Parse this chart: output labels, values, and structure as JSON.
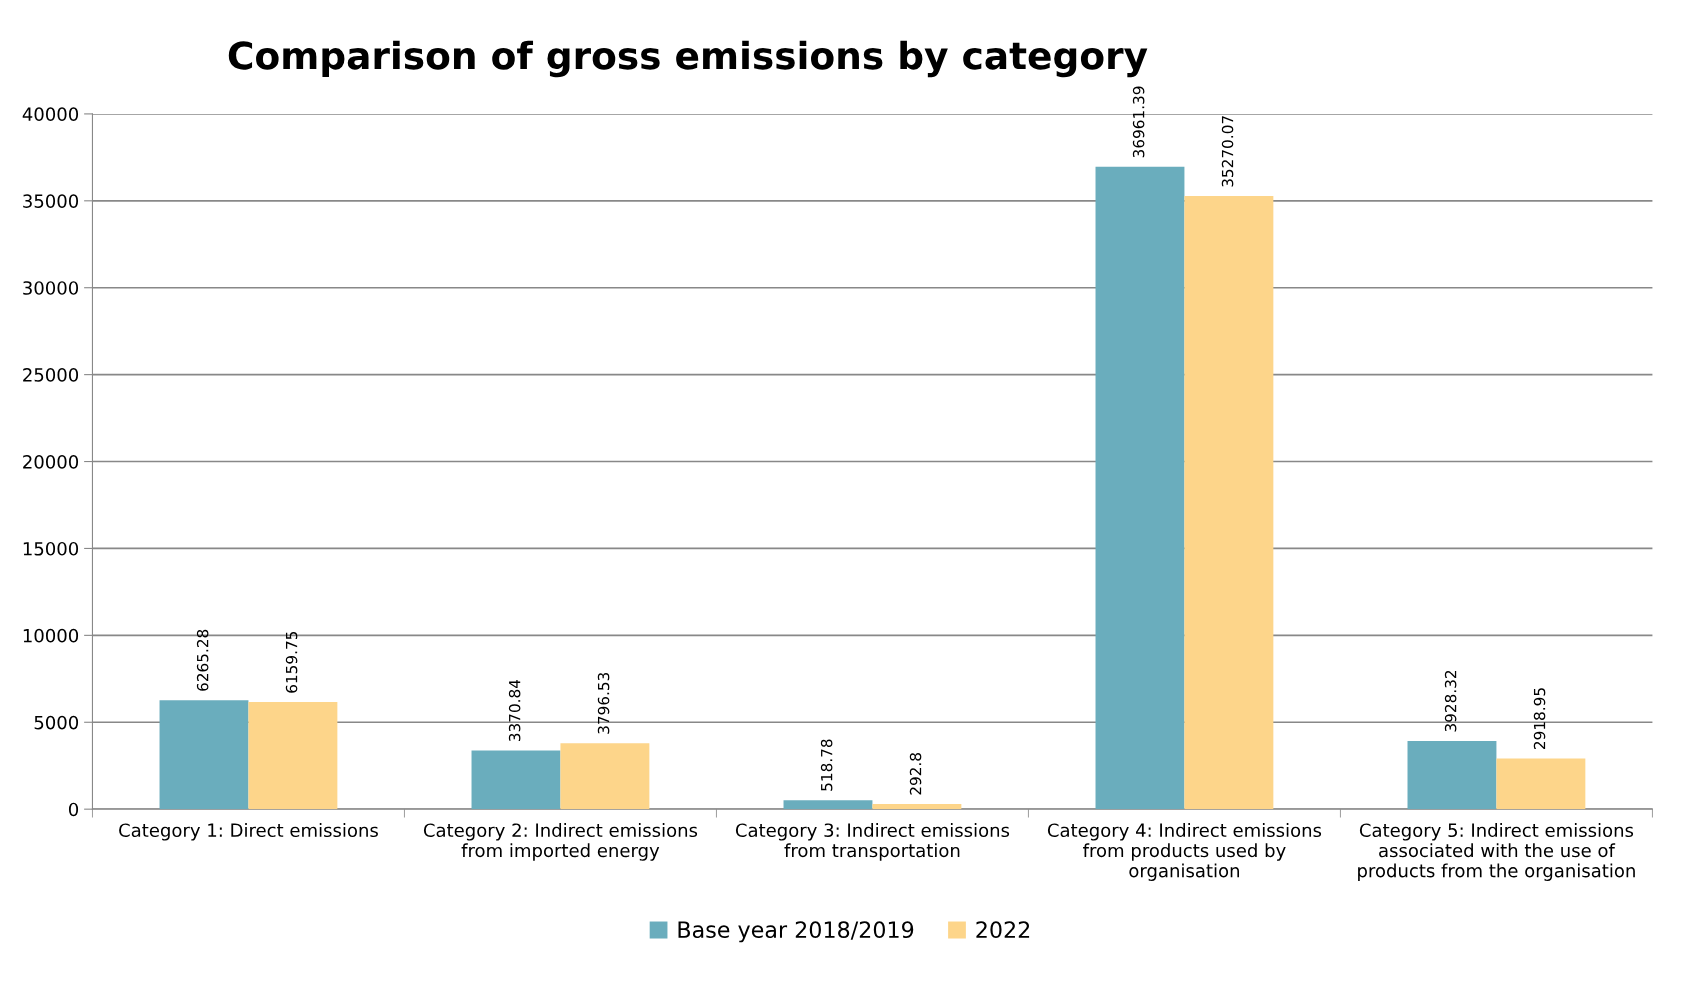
{
  "chart_data": {
    "type": "bar",
    "title": "Comparison of gross emissions by category",
    "categories": [
      "Category 1: Direct emissions",
      "Category 2: Indirect emissions from imported energy",
      "Category 3: Indirect emissions from transportation",
      "Category 4: Indirect emissions from products used by organisation",
      "Category 5: Indirect emissions associated with the use of products from the organisation"
    ],
    "series": [
      {
        "name": "Base year 2018/2019",
        "color": "#6aadbd",
        "values": [
          6265.28,
          3370.84,
          518.78,
          36961.39,
          3928.32
        ]
      },
      {
        "name": "2022",
        "color": "#fdd58a",
        "values": [
          6159.75,
          3796.53,
          292.8,
          35270.07,
          2918.95
        ]
      }
    ],
    "ylim": [
      0,
      40000
    ],
    "yticks": [
      0,
      5000,
      10000,
      15000,
      20000,
      25000,
      30000,
      35000,
      40000
    ],
    "grid": "y",
    "legend": "bottom",
    "data_labels": true
  }
}
